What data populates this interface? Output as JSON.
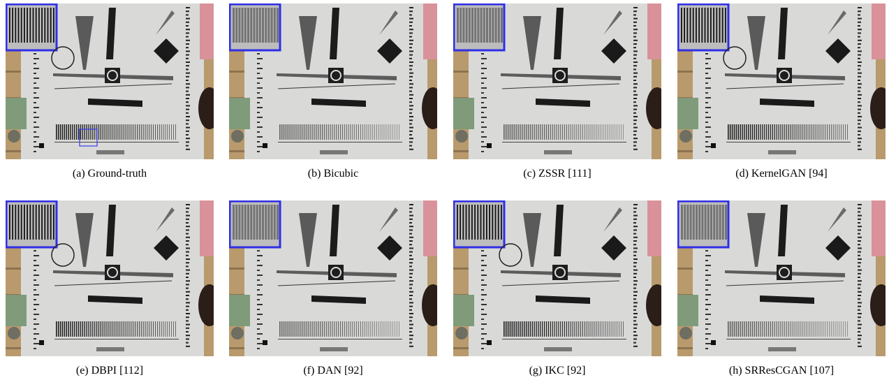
{
  "figure": {
    "panels": [
      {
        "caption": "(a) Ground-truth"
      },
      {
        "caption": "(b) Bicubic"
      },
      {
        "caption": "(c) ZSSR [111]"
      },
      {
        "caption": "(d) KernelGAN [94]"
      },
      {
        "caption": "(e) DBPI [112]"
      },
      {
        "caption": "(f) DAN [92]"
      },
      {
        "caption": "(g) IKC [92]"
      },
      {
        "caption": "(h) SRResCGAN [107]"
      }
    ]
  }
}
